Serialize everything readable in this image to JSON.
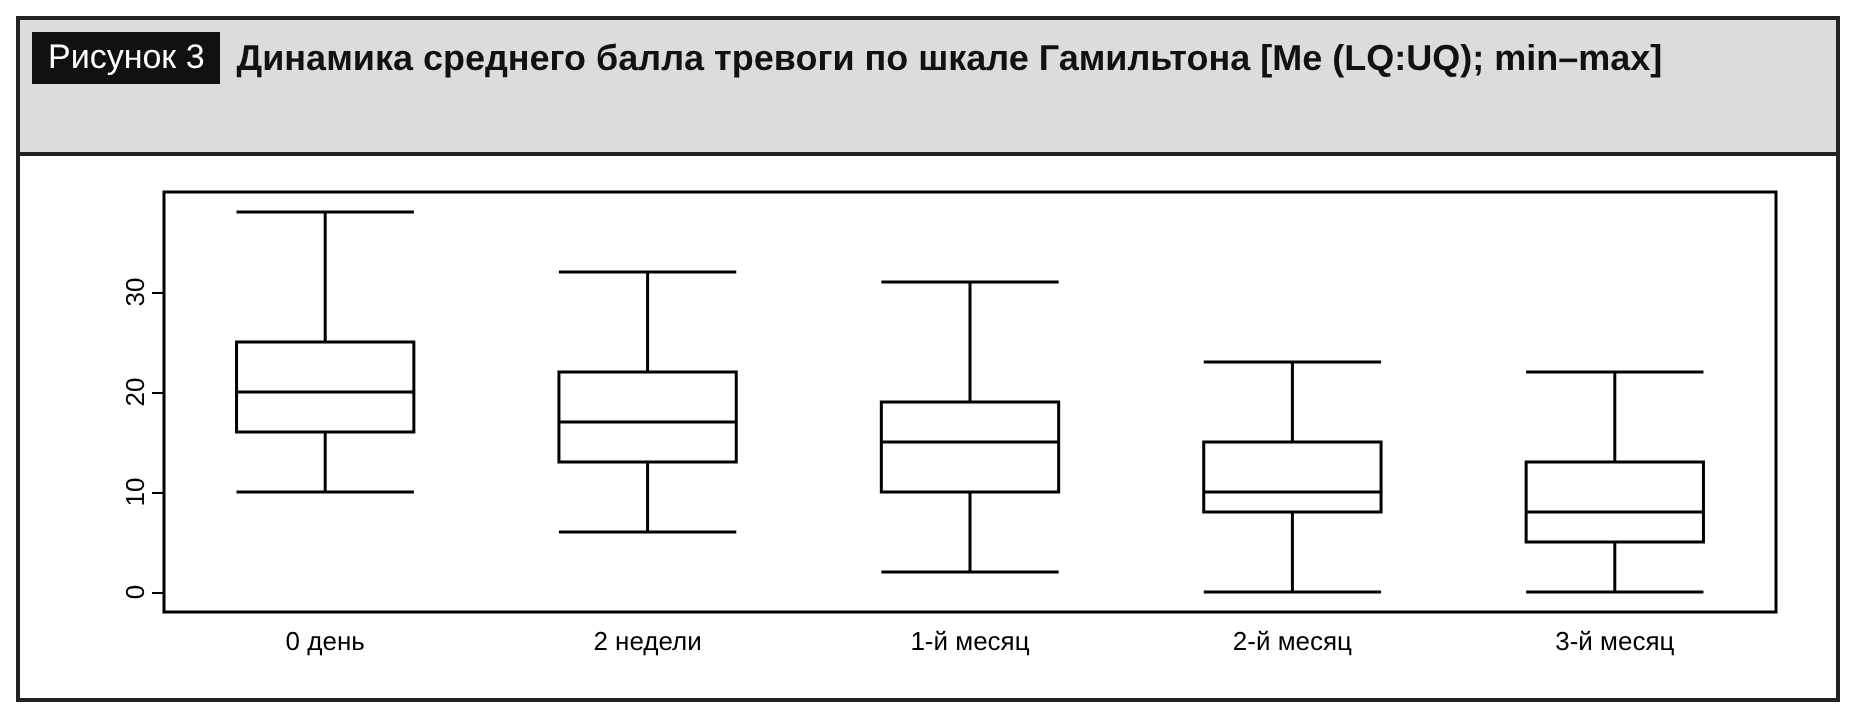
{
  "chart_data": {
    "type": "box",
    "title": "Динамика среднего балла тревоги по шкале Гамильтона [Me (LQ:UQ); min–max]",
    "annotations": [
      "Рисунок 3"
    ],
    "categories": [
      "0 день",
      "2 недели",
      "1-й месяц",
      "2-й месяц",
      "3-й месяц"
    ],
    "boxes": [
      {
        "low": 10,
        "q1": 16,
        "median": 20,
        "q3": 25,
        "high": 38
      },
      {
        "low": 6,
        "q1": 13,
        "median": 17,
        "q3": 22,
        "high": 32
      },
      {
        "low": 2,
        "q1": 10,
        "median": 15,
        "q3": 19,
        "high": 31
      },
      {
        "low": 0,
        "q1": 8,
        "median": 10,
        "q3": 15,
        "high": 23
      },
      {
        "low": 0,
        "q1": 5,
        "median": 8,
        "q3": 13,
        "high": 22
      }
    ],
    "color": "#000000",
    "ylim": [
      -2,
      40
    ],
    "yticks": [
      0,
      10,
      20,
      30
    ]
  }
}
